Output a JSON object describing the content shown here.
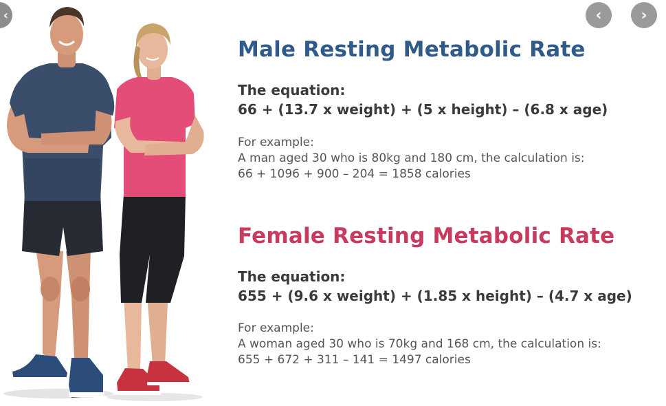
{
  "nav": {
    "prev_icon": "chevron-left-icon",
    "next_icon": "chevron-right-icon",
    "prev_glyph": "‹",
    "next_glyph": "›",
    "edge_glyph": "‹"
  },
  "male": {
    "title": "Male Resting Metabolic Rate",
    "equation_label": "The equation:",
    "equation": "66 + (13.7 x weight) + (5 x height) – (6.8 x age)",
    "example_label": "For example:",
    "example_desc": "A man aged 30 who is 80kg and 180 cm, the calculation is:",
    "example_calc": "66 + 1096 + 900 – 204 = 1858 calories"
  },
  "female": {
    "title": "Female Resting Metabolic Rate",
    "equation_label": "The equation:",
    "equation": "655 + (9.6 x weight) + (1.85 x height) – (4.7 x age)",
    "example_label": "For example:",
    "example_desc": "A woman aged 30 who is 70kg and 168 cm, the calculation is:",
    "example_calc": "655 + 672 + 311 – 141 = 1497 calories"
  },
  "colors": {
    "male_title": "#2f5a8a",
    "female_title": "#c73b5e",
    "text": "#3a3a3a"
  }
}
